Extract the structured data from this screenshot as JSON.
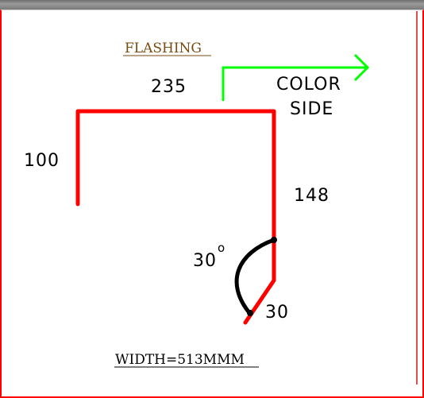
{
  "title": "FLASHING",
  "dimensions": {
    "top": "235",
    "left": "100",
    "right": "148",
    "bottom": "30",
    "angle": "30",
    "angle_unit": "o"
  },
  "color_side": {
    "line1": "COLOR",
    "line2": "SIDE",
    "arrow_color": "#00ff00"
  },
  "width_label": "WIDTH=513MMM",
  "colors": {
    "profile": "#ff0000",
    "arc": "#000000",
    "border": "#ff0000"
  }
}
